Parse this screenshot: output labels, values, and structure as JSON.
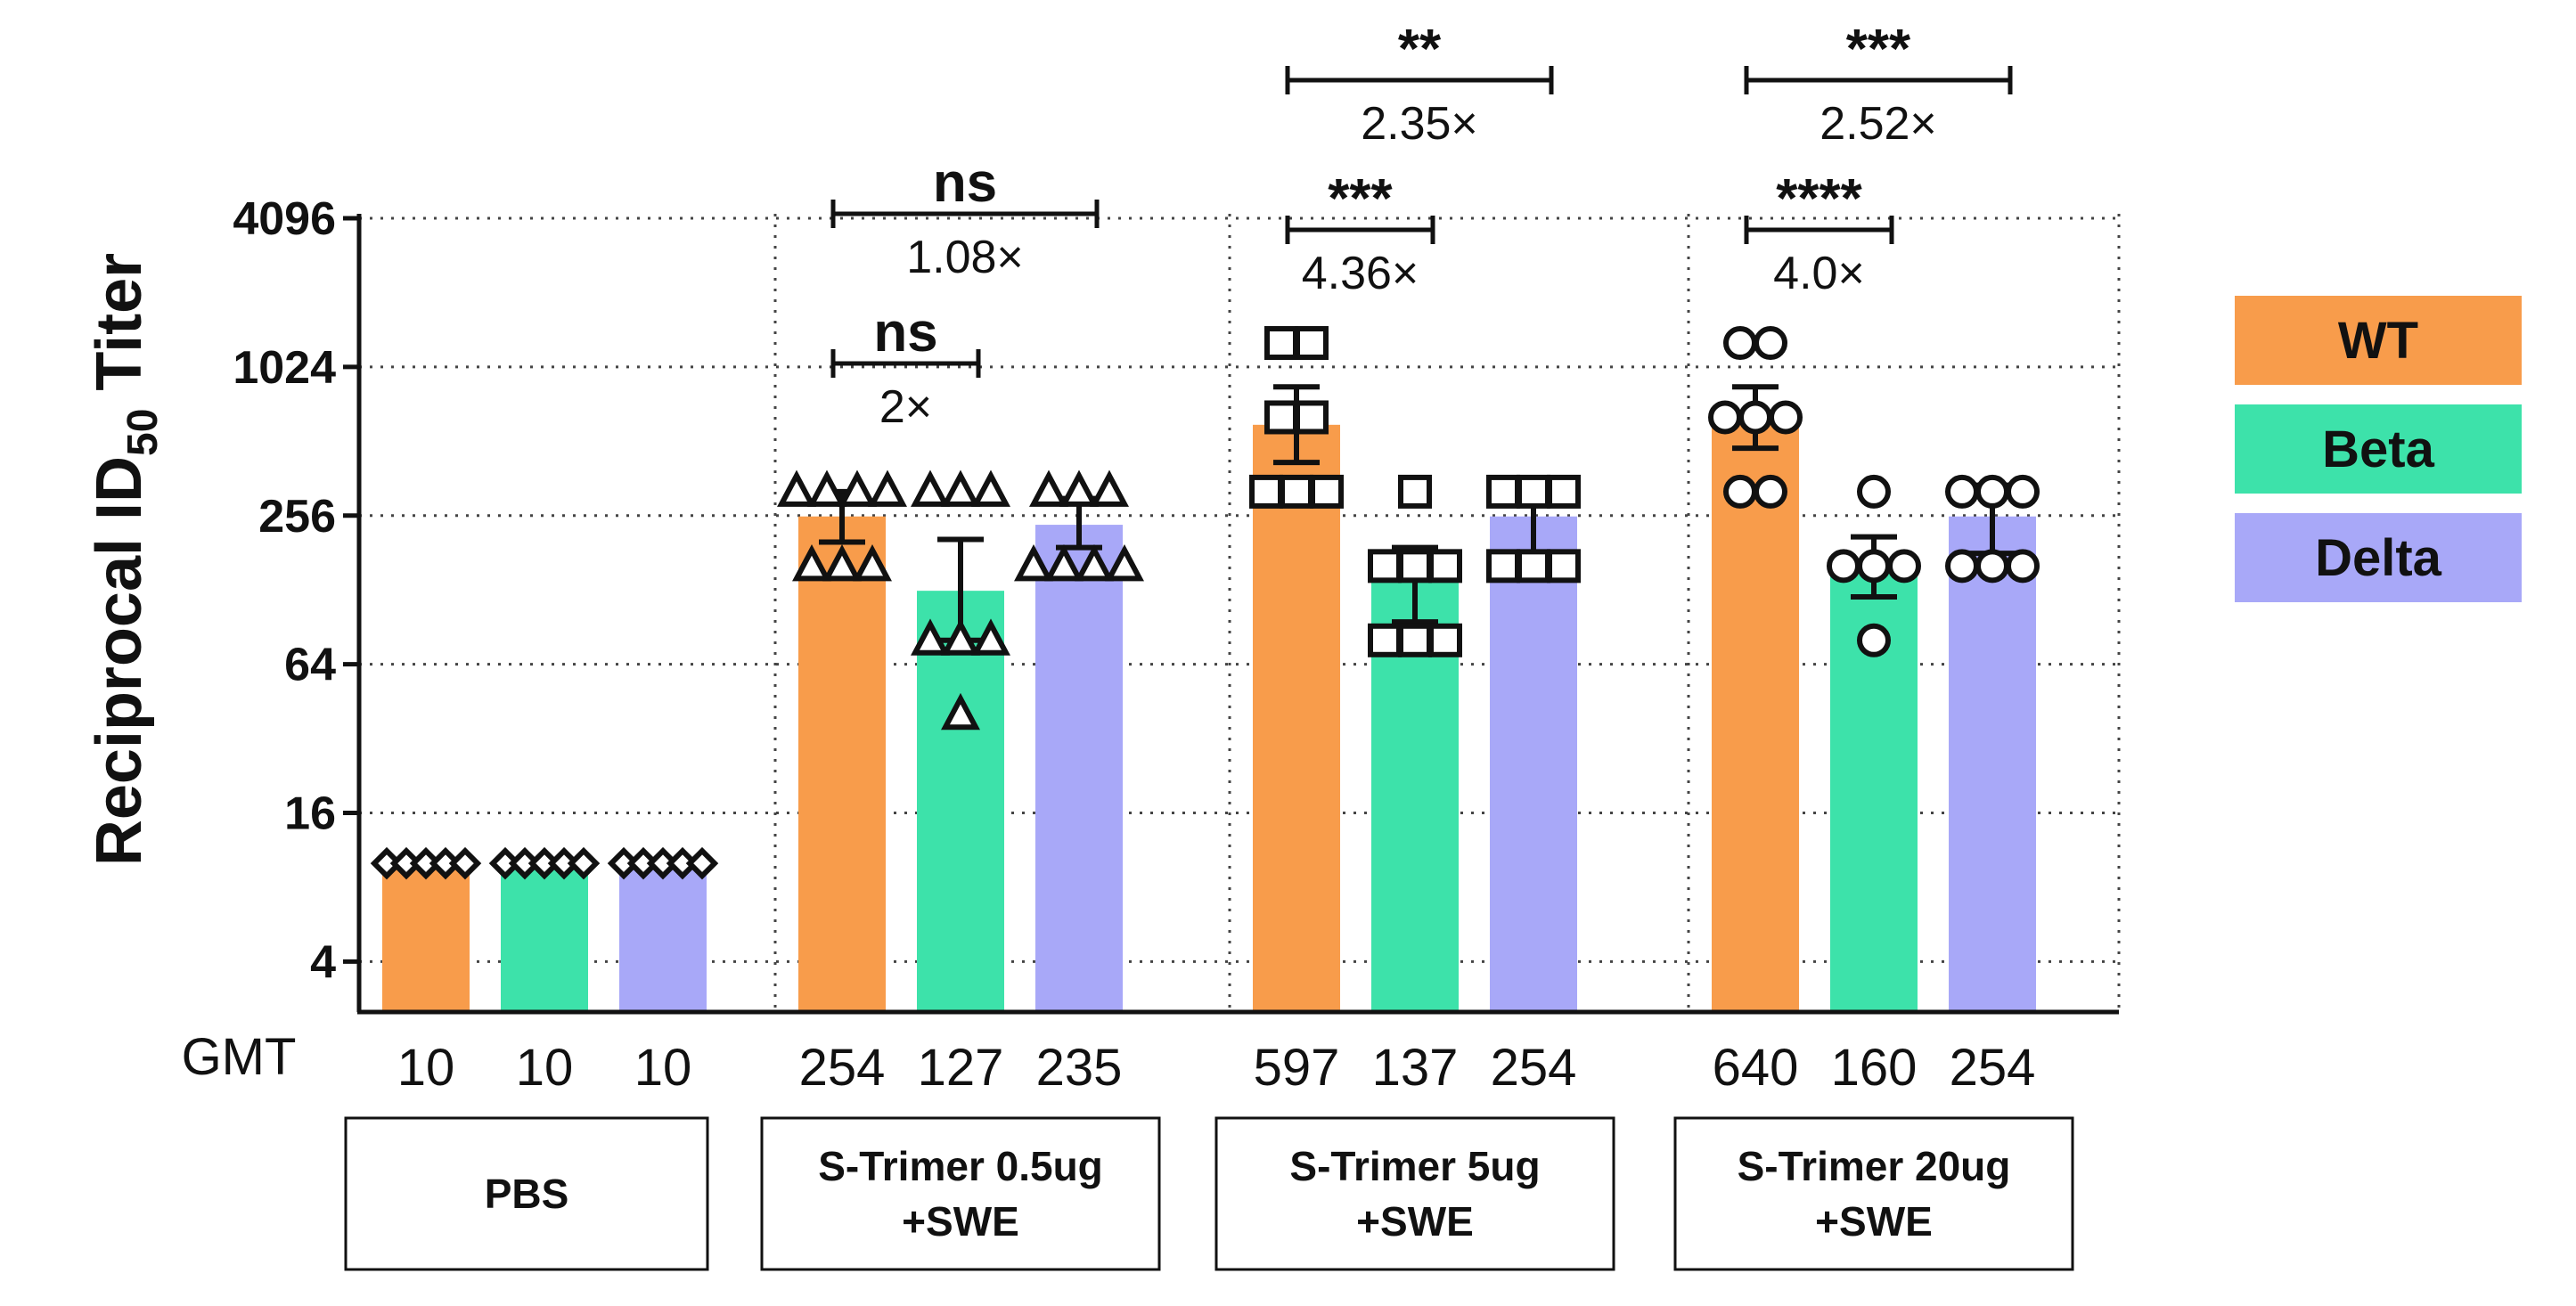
{
  "chart_data": {
    "type": "bar",
    "ylabel_main": "Reciprocal ID",
    "ylabel_sub": "50",
    "ylabel_end": " Titer",
    "yscale": "log2",
    "ylim": [
      2.5,
      4096
    ],
    "yticks": [
      4,
      16,
      64,
      256,
      1024,
      4096
    ],
    "ytick_labels": [
      "4",
      "16",
      "64",
      "256",
      "1024",
      "4096"
    ],
    "gmt_label": "GMT",
    "legend_position": "right",
    "series": [
      {
        "name": "WT",
        "color": "#F89C4B",
        "values": [
          10,
          254,
          597,
          640
        ]
      },
      {
        "name": "Beta",
        "color": "#3DE2AA",
        "values": [
          10,
          127,
          137,
          160
        ]
      },
      {
        "name": "Delta",
        "color": "#A8A8F8",
        "values": [
          10,
          235,
          254,
          254
        ]
      }
    ],
    "groups": [
      {
        "name_lines": [
          "PBS"
        ],
        "gmt": [
          "10",
          "10",
          "10"
        ],
        "marker": "diamond",
        "points": [
          [
            10,
            10,
            10,
            10,
            10
          ],
          [
            10,
            10,
            10,
            10,
            10
          ],
          [
            10,
            10,
            10,
            10,
            10
          ]
        ],
        "error": [
          null,
          null,
          null
        ]
      },
      {
        "name_lines": [
          "S-Trimer 0.5ug",
          "+SWE"
        ],
        "gmt": [
          "254",
          "127",
          "235"
        ],
        "marker": "triangle",
        "points": [
          [
            320,
            320,
            320,
            320,
            160,
            160,
            160
          ],
          [
            320,
            320,
            320,
            80,
            80,
            80,
            40
          ],
          [
            320,
            320,
            320,
            160,
            160,
            160,
            160
          ]
        ],
        "error": [
          [
            200,
            320
          ],
          [
            80,
            205
          ],
          [
            190,
            300
          ]
        ]
      },
      {
        "name_lines": [
          "S-Trimer 5ug",
          "+SWE"
        ],
        "gmt": [
          "597",
          "137",
          "254"
        ],
        "marker": "square",
        "points": [
          [
            1280,
            1280,
            640,
            640,
            320,
            320,
            320
          ],
          [
            320,
            160,
            160,
            160,
            80,
            80,
            80
          ],
          [
            320,
            320,
            320,
            160,
            160,
            160
          ]
        ],
        "error": [
          [
            420,
            850
          ],
          [
            95,
            190
          ],
          [
            175,
            340
          ]
        ]
      },
      {
        "name_lines": [
          "S-Trimer 20ug",
          "+SWE"
        ],
        "gmt": [
          "640",
          "160",
          "254"
        ],
        "marker": "circle",
        "points": [
          [
            1280,
            1280,
            640,
            640,
            640,
            320,
            320
          ],
          [
            320,
            160,
            160,
            160,
            80
          ],
          [
            320,
            320,
            320,
            160,
            160,
            160
          ]
        ],
        "error": [
          [
            480,
            850
          ],
          [
            120,
            210
          ],
          [
            180,
            340
          ]
        ]
      }
    ],
    "comparisons": [
      {
        "group": 1,
        "from": 0,
        "to": 1,
        "label": "ns",
        "fold": "2×",
        "level": 0
      },
      {
        "group": 1,
        "from": 0,
        "to": 2,
        "label": "ns",
        "fold": "1.08×",
        "level": 1
      },
      {
        "group": 2,
        "from": 0,
        "to": 1,
        "label": "***",
        "fold": "4.36×",
        "level": 0
      },
      {
        "group": 2,
        "from": 0,
        "to": 2,
        "label": "**",
        "fold": "2.35×",
        "level": 1
      },
      {
        "group": 3,
        "from": 0,
        "to": 1,
        "label": "****",
        "fold": "4.0×",
        "level": 0
      },
      {
        "group": 3,
        "from": 0,
        "to": 2,
        "label": "***",
        "fold": "2.52×",
        "level": 1
      }
    ]
  }
}
